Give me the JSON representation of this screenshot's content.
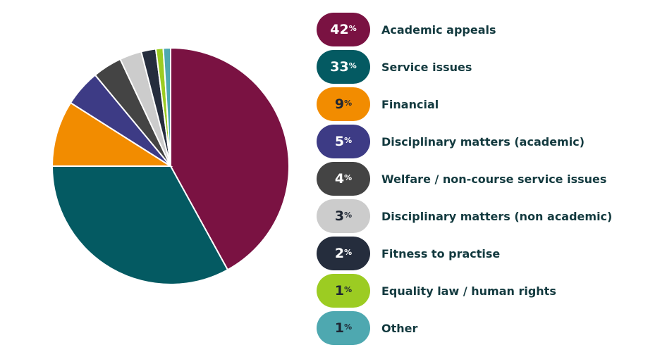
{
  "chart_data": {
    "type": "pie",
    "start_angle": "top",
    "direction": "clockwise",
    "legend_placement": "right",
    "slices": [
      {
        "label": "Academic appeals",
        "value": 42,
        "display": "42",
        "color": "#7a1242",
        "text_color": "#ffffff"
      },
      {
        "label": "Service issues",
        "value": 33,
        "display": "33",
        "color": "#045a62",
        "text_color": "#ffffff"
      },
      {
        "label": "Financial",
        "value": 9,
        "display": "9",
        "color": "#f28c00",
        "text_color": "#1e2633"
      },
      {
        "label": "Disciplinary matters (academic)",
        "value": 5,
        "display": "5",
        "color": "#3d3b85",
        "text_color": "#ffffff"
      },
      {
        "label": "Welfare / non-course service issues",
        "value": 4,
        "display": "4",
        "color": "#444444",
        "text_color": "#ffffff"
      },
      {
        "label": "Disciplinary matters (non academic)",
        "value": 3,
        "display": "3",
        "color": "#cccccc",
        "text_color": "#1e2633"
      },
      {
        "label": "Fitness to practise",
        "value": 2,
        "display": "2",
        "color": "#252d3d",
        "text_color": "#ffffff"
      },
      {
        "label": "Equality law / human rights",
        "value": 1,
        "display": "1",
        "color": "#9ccc22",
        "text_color": "#1e2633"
      },
      {
        "label": "Other",
        "value": 1,
        "display": "1",
        "color": "#4ea8b0",
        "text_color": "#1e2633"
      }
    ],
    "percent_symbol": "%"
  }
}
